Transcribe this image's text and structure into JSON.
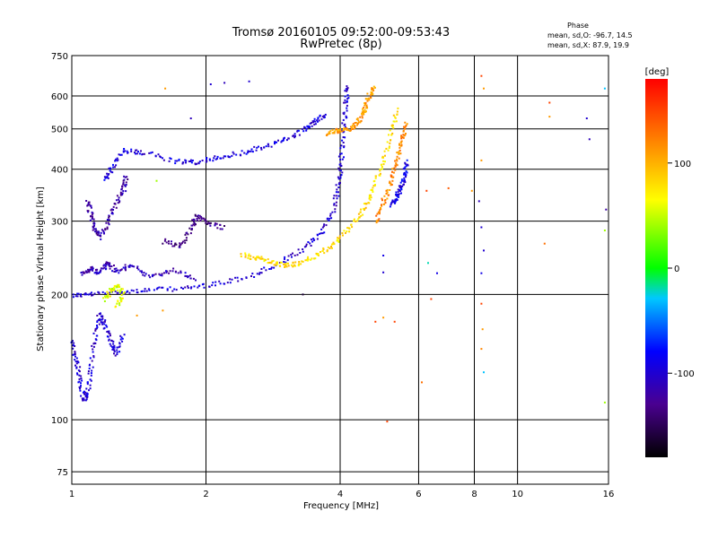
{
  "chart_data": {
    "type": "scatter",
    "title": "Tromsø 20160105 09:52:00-09:53:43",
    "subtitle": "RwPretec (8p)",
    "xlabel": "Frequency [MHz]",
    "ylabel": "Stationary phase Virtual Height [km]",
    "x_scale": "log",
    "y_scale": "log",
    "xlim": [
      1,
      16
    ],
    "ylim": [
      70,
      750
    ],
    "x_ticks": [
      "1",
      "2",
      "4",
      "6",
      "8",
      "10",
      "16"
    ],
    "y_ticks": [
      "75",
      "100",
      "200",
      "300",
      "400",
      "500",
      "600",
      "750"
    ],
    "grid": true,
    "stats": {
      "heading": "Phase",
      "line_o": "mean, sd,O: -96.7, 14.5",
      "line_x": "mean, sd,X:  87.9, 19.9"
    },
    "colorbar": {
      "label": "[deg]",
      "range": [
        -180,
        180
      ],
      "ticks": [
        "100",
        "0",
        "-100"
      ],
      "colormap": "rainbow"
    },
    "traces": [
      {
        "phase": -100,
        "points": [
          [
            1.0,
            200
          ],
          [
            1.1,
            201
          ],
          [
            1.3,
            204
          ],
          [
            1.5,
            206
          ],
          [
            1.8,
            208
          ],
          [
            2.1,
            213
          ],
          [
            2.5,
            222
          ],
          [
            2.9,
            238
          ],
          [
            3.3,
            258
          ],
          [
            3.6,
            282
          ],
          [
            3.85,
            320
          ],
          [
            3.95,
            370
          ],
          [
            4.0,
            420
          ],
          [
            4.05,
            500
          ],
          [
            4.1,
            580
          ],
          [
            4.15,
            640
          ]
        ]
      },
      {
        "phase": -110,
        "points": [
          [
            1.05,
            225
          ],
          [
            1.1,
            232
          ],
          [
            1.15,
            226
          ],
          [
            1.2,
            240
          ],
          [
            1.25,
            228
          ],
          [
            1.35,
            236
          ],
          [
            1.5,
            222
          ],
          [
            1.7,
            230
          ],
          [
            1.9,
            218
          ]
        ]
      },
      {
        "phase": -95,
        "points": [
          [
            1.18,
            380
          ],
          [
            1.22,
            400
          ],
          [
            1.3,
            445
          ],
          [
            1.45,
            440
          ],
          [
            1.7,
            420
          ],
          [
            1.9,
            418
          ],
          [
            2.1,
            428
          ],
          [
            2.4,
            440
          ],
          [
            2.7,
            455
          ],
          [
            3.0,
            472
          ],
          [
            3.3,
            500
          ],
          [
            3.5,
            525
          ],
          [
            3.7,
            540
          ]
        ]
      },
      {
        "phase": 110,
        "points": [
          [
            3.7,
            490
          ],
          [
            3.9,
            496
          ],
          [
            4.1,
            500
          ],
          [
            4.3,
            510
          ],
          [
            4.45,
            540
          ],
          [
            4.55,
            570
          ],
          [
            4.65,
            610
          ],
          [
            4.75,
            630
          ]
        ]
      },
      {
        "phase": 80,
        "points": [
          [
            2.4,
            250
          ],
          [
            2.6,
            246
          ],
          [
            2.8,
            240
          ],
          [
            3.0,
            236
          ],
          [
            3.2,
            238
          ],
          [
            3.5,
            248
          ],
          [
            3.8,
            262
          ],
          [
            4.1,
            285
          ],
          [
            4.4,
            310
          ],
          [
            4.6,
            340
          ],
          [
            4.8,
            380
          ],
          [
            5.0,
            430
          ],
          [
            5.2,
            500
          ],
          [
            5.35,
            560
          ]
        ]
      },
      {
        "phase": 120,
        "points": [
          [
            4.8,
            300
          ],
          [
            4.95,
            330
          ],
          [
            5.1,
            360
          ],
          [
            5.25,
            400
          ],
          [
            5.4,
            440
          ],
          [
            5.5,
            480
          ],
          [
            5.6,
            520
          ]
        ]
      },
      {
        "phase": -90,
        "points": [
          [
            5.2,
            330
          ],
          [
            5.3,
            340
          ],
          [
            5.4,
            355
          ],
          [
            5.5,
            370
          ],
          [
            5.58,
            395
          ],
          [
            5.62,
            420
          ]
        ]
      },
      {
        "phase": -100,
        "points": [
          [
            1.0,
            155
          ],
          [
            1.02,
            140
          ],
          [
            1.04,
            125
          ],
          [
            1.06,
            112
          ],
          [
            1.08,
            116
          ],
          [
            1.1,
            135
          ],
          [
            1.12,
            160
          ],
          [
            1.15,
            180
          ],
          [
            1.18,
            170
          ],
          [
            1.22,
            155
          ],
          [
            1.25,
            145
          ],
          [
            1.3,
            160
          ]
        ]
      },
      {
        "phase": 60,
        "points": [
          [
            1.18,
            195
          ],
          [
            1.22,
            205
          ],
          [
            1.26,
            212
          ],
          [
            1.3,
            200
          ],
          [
            1.25,
            185
          ]
        ]
      },
      {
        "phase": -120,
        "points": [
          [
            1.08,
            340
          ],
          [
            1.1,
            310
          ],
          [
            1.12,
            290
          ],
          [
            1.15,
            275
          ],
          [
            1.2,
            300
          ],
          [
            1.25,
            330
          ],
          [
            1.3,
            360
          ],
          [
            1.32,
            390
          ]
        ]
      },
      {
        "phase": -130,
        "points": [
          [
            1.6,
            270
          ],
          [
            1.75,
            262
          ],
          [
            1.85,
            290
          ],
          [
            1.9,
            310
          ],
          [
            2.0,
            300
          ],
          [
            2.2,
            290
          ]
        ]
      }
    ],
    "scatter_points": [
      {
        "x": 1.62,
        "y": 625,
        "phase": 110
      },
      {
        "x": 2.05,
        "y": 640,
        "phase": -100
      },
      {
        "x": 2.2,
        "y": 645,
        "phase": -110
      },
      {
        "x": 2.5,
        "y": 650,
        "phase": -100
      },
      {
        "x": 1.85,
        "y": 530,
        "phase": -110
      },
      {
        "x": 6.25,
        "y": 355,
        "phase": 150
      },
      {
        "x": 7.0,
        "y": 360,
        "phase": 140
      },
      {
        "x": 7.9,
        "y": 355,
        "phase": 110
      },
      {
        "x": 8.3,
        "y": 670,
        "phase": 150
      },
      {
        "x": 8.4,
        "y": 625,
        "phase": 110
      },
      {
        "x": 8.3,
        "y": 420,
        "phase": 110
      },
      {
        "x": 8.2,
        "y": 335,
        "phase": -110
      },
      {
        "x": 8.3,
        "y": 290,
        "phase": -100
      },
      {
        "x": 8.4,
        "y": 255,
        "phase": -100
      },
      {
        "x": 8.3,
        "y": 225,
        "phase": -90
      },
      {
        "x": 8.3,
        "y": 190,
        "phase": 150
      },
      {
        "x": 8.35,
        "y": 165,
        "phase": 110
      },
      {
        "x": 8.3,
        "y": 148,
        "phase": 120
      },
      {
        "x": 8.4,
        "y": 130,
        "phase": -30
      },
      {
        "x": 6.3,
        "y": 238,
        "phase": -20
      },
      {
        "x": 6.6,
        "y": 225,
        "phase": -90
      },
      {
        "x": 6.4,
        "y": 195,
        "phase": 150
      },
      {
        "x": 6.1,
        "y": 123,
        "phase": 130
      },
      {
        "x": 5.0,
        "y": 248,
        "phase": -90
      },
      {
        "x": 5.0,
        "y": 226,
        "phase": -100
      },
      {
        "x": 5.0,
        "y": 176,
        "phase": 110
      },
      {
        "x": 4.8,
        "y": 172,
        "phase": 150
      },
      {
        "x": 5.3,
        "y": 172,
        "phase": 150
      },
      {
        "x": 5.1,
        "y": 99,
        "phase": 150
      },
      {
        "x": 11.8,
        "y": 578,
        "phase": 150
      },
      {
        "x": 11.8,
        "y": 535,
        "phase": 110
      },
      {
        "x": 14.3,
        "y": 530,
        "phase": -100
      },
      {
        "x": 14.5,
        "y": 472,
        "phase": -110
      },
      {
        "x": 15.7,
        "y": 625,
        "phase": -30
      },
      {
        "x": 15.8,
        "y": 320,
        "phase": -120
      },
      {
        "x": 15.7,
        "y": 285,
        "phase": 40
      },
      {
        "x": 15.7,
        "y": 110,
        "phase": 40
      },
      {
        "x": 11.5,
        "y": 265,
        "phase": 130
      },
      {
        "x": 1.55,
        "y": 375,
        "phase": 40
      },
      {
        "x": 1.4,
        "y": 178,
        "phase": 110
      },
      {
        "x": 1.6,
        "y": 183,
        "phase": 110
      },
      {
        "x": 3.3,
        "y": 200,
        "phase": -160
      }
    ]
  }
}
